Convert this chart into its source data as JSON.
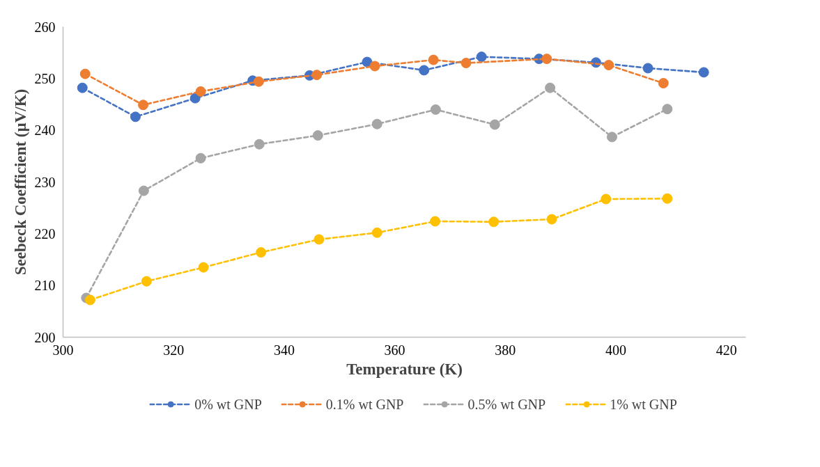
{
  "chart_data": {
    "type": "line",
    "xlabel": "Temperature (K)",
    "ylabel": "Seebeck Coefficient (µV/K)",
    "xlim": [
      300,
      423.5
    ],
    "xticks": [
      300,
      320,
      340,
      360,
      380,
      400,
      420
    ],
    "ylim": [
      200,
      260
    ],
    "yticks": [
      200,
      210,
      220,
      230,
      240,
      250,
      260
    ],
    "grid": false,
    "legend": "bottom",
    "marker": "circle",
    "line_style": "dashed",
    "series": [
      {
        "name": "0% wt GNP",
        "color": "#4472c4",
        "x": [
          303.5,
          313.1,
          323.9,
          334.3,
          344.6,
          355.0,
          365.3,
          375.7,
          386.1,
          396.4,
          405.8,
          415.9
        ],
        "values": [
          248.2,
          242.6,
          246.2,
          249.6,
          250.6,
          253.2,
          251.6,
          254.2,
          253.8,
          253.1,
          252.0,
          251.2
        ]
      },
      {
        "name": "0.1% wt GNP",
        "color": "#ed7d31",
        "x": [
          304.0,
          314.5,
          324.9,
          335.4,
          345.9,
          356.4,
          367.0,
          372.9,
          387.5,
          398.7,
          408.6
        ],
        "values": [
          250.9,
          244.9,
          247.5,
          249.4,
          250.7,
          252.4,
          253.6,
          253.0,
          253.8,
          252.6,
          249.1
        ]
      },
      {
        "name": "0.5% wt GNP",
        "color": "#a5a5a5",
        "x": [
          304.2,
          314.6,
          324.9,
          335.5,
          346.1,
          356.8,
          367.4,
          378.1,
          388.1,
          399.3,
          409.3
        ],
        "values": [
          207.6,
          228.3,
          234.6,
          237.3,
          239.0,
          241.2,
          244.0,
          241.1,
          248.2,
          238.7,
          244.1
        ]
      },
      {
        "name": "1% wt GNP",
        "color": "#ffc000",
        "x": [
          304.9,
          315.1,
          325.4,
          335.8,
          346.3,
          356.8,
          367.3,
          377.9,
          388.4,
          398.2,
          409.3
        ],
        "values": [
          207.2,
          210.8,
          213.5,
          216.4,
          218.9,
          220.2,
          222.4,
          222.3,
          222.8,
          226.7,
          226.8
        ]
      }
    ]
  }
}
